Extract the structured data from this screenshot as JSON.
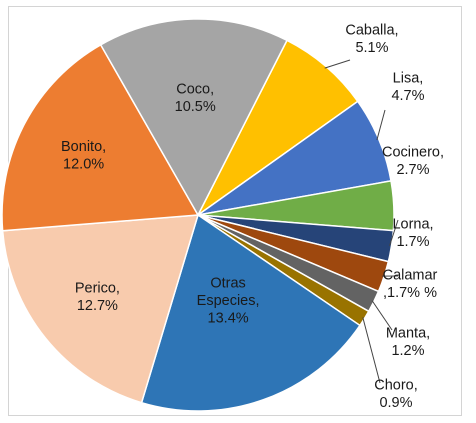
{
  "chart_data": {
    "type": "pie",
    "title": "",
    "slices": [
      {
        "name": "Caballa",
        "value": 5.1,
        "label_lines": [
          "Caballa,",
          "5.1%"
        ],
        "color": "#ffc000"
      },
      {
        "name": "Lisa",
        "value": 4.7,
        "label_lines": [
          "Lisa,",
          "4.7%"
        ],
        "color": "#4472c4"
      },
      {
        "name": "Cocinero",
        "value": 2.7,
        "label_lines": [
          "Cocinero,",
          "2.7%"
        ],
        "color": "#70ad47"
      },
      {
        "name": "Lorna",
        "value": 1.7,
        "label_lines": [
          "Lorna,",
          "1.7%"
        ],
        "color": "#264478"
      },
      {
        "name": "Calamar",
        "value": 1.7,
        "label_lines": [
          "Calamar",
          ",1.7% %"
        ],
        "color": "#9e480e"
      },
      {
        "name": "Manta",
        "value": 1.2,
        "label_lines": [
          "Manta,",
          "1.2%"
        ],
        "color": "#636363"
      },
      {
        "name": "Choro",
        "value": 0.9,
        "label_lines": [
          "Choro,",
          "0.9%"
        ],
        "color": "#997300"
      },
      {
        "name": "Otras Especies",
        "value": 13.4,
        "label_lines": [
          "Otras",
          "Especies,",
          "13.4%"
        ],
        "color": "#2e75b6"
      },
      {
        "name": "Perico",
        "value": 12.7,
        "label_lines": [
          "Perico,",
          "12.7%"
        ],
        "color": "#f8cbad"
      },
      {
        "name": "Bonito",
        "value": 12.0,
        "label_lines": [
          "Bonito,",
          "12.0%"
        ],
        "color": "#ed7d31"
      },
      {
        "name": "Coco",
        "value": 10.5,
        "label_lines": [
          "Coco,",
          "10.5%"
        ],
        "color": "#a5a5a5"
      }
    ]
  }
}
